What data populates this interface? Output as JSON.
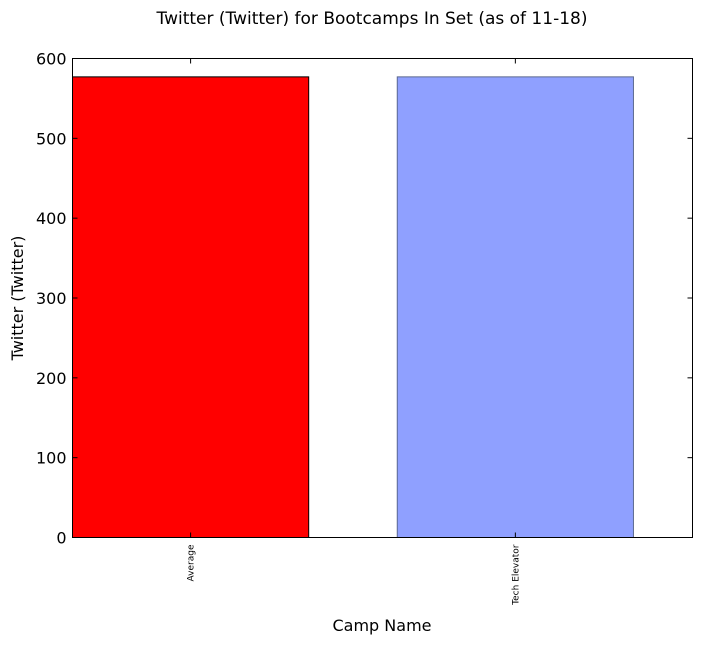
{
  "chart_data": {
    "type": "bar",
    "title": "Twitter (Twitter) for Bootcamps In Set (as of 11-18)",
    "xlabel": "Camp Name",
    "ylabel": "Twitter (Twitter)",
    "categories": [
      "Average",
      "Tech Elevator"
    ],
    "values": [
      577,
      577
    ],
    "colors": [
      "#ff0000",
      "#8fa0ff"
    ],
    "edge_colors": [
      "#000000",
      "#5a6890"
    ],
    "ylim": [
      0,
      600
    ],
    "yticks": [
      0,
      100,
      200,
      300,
      400,
      500,
      600
    ],
    "grid": false
  }
}
